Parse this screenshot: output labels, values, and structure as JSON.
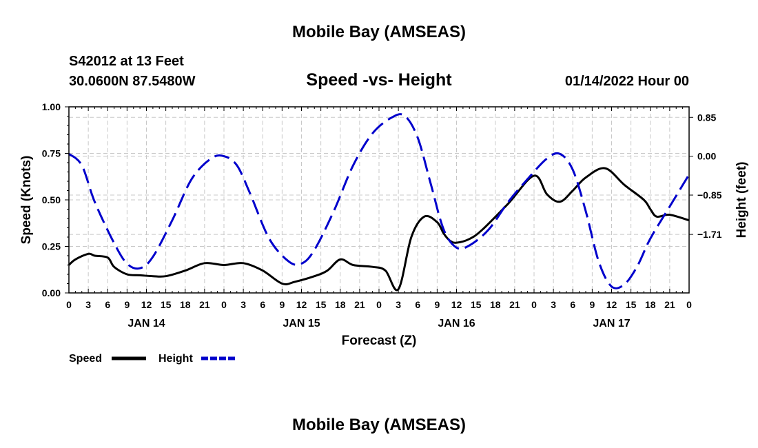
{
  "chart_data": {
    "type": "line",
    "title": "Mobile Bay (AMSEAS)",
    "subtitle": "Speed -vs- Height",
    "station": "S42012 at 13 Feet",
    "location": "30.0600N  87.5480W",
    "run_time": "01/14/2022 Hour 00",
    "footer_title": "Mobile Bay (AMSEAS)",
    "xlabel": "Forecast (Z)",
    "ylabel": "Speed (Knots)",
    "y2label": "Height (feet)",
    "ylim": [
      0,
      1
    ],
    "y2lim": [
      -2.99,
      1.08
    ],
    "xlim": [
      0,
      96
    ],
    "x_tick_labels": [
      "0",
      "3",
      "6",
      "9",
      "12",
      "15",
      "18",
      "21",
      "0",
      "3",
      "6",
      "9",
      "12",
      "15",
      "18",
      "21",
      "0",
      "3",
      "6",
      "9",
      "12",
      "15",
      "18",
      "21",
      "0",
      "3",
      "6",
      "9",
      "12",
      "15",
      "18",
      "21",
      "0"
    ],
    "day_labels": [
      {
        "label": "JAN 14",
        "hour": 12
      },
      {
        "label": "JAN 15",
        "hour": 36
      },
      {
        "label": "JAN 16",
        "hour": 60
      },
      {
        "label": "JAN 17",
        "hour": 84
      }
    ],
    "y_ticks": [
      "0.00",
      "0.25",
      "0.50",
      "0.75",
      "1.00"
    ],
    "y2_ticks": [
      0.85,
      0.0,
      -0.85,
      -1.71
    ],
    "y2_tick_labels": [
      "0.85",
      "0.00",
      "−0.85",
      "−1.71"
    ],
    "series": [
      {
        "name": "Speed",
        "color": "#000000",
        "axis": "left",
        "style": "solid",
        "x": [
          0,
          1,
          3,
          4,
          6,
          7,
          9,
          11,
          13,
          15,
          18,
          21,
          24,
          27,
          30,
          33,
          35,
          38,
          40,
          42,
          44,
          47,
          49,
          51,
          53,
          55,
          57,
          58,
          59,
          60,
          62,
          64,
          68,
          72,
          74,
          76,
          78,
          80,
          83,
          86,
          89,
          90,
          91,
          93,
          96
        ],
        "y": [
          0.15,
          0.18,
          0.21,
          0.2,
          0.19,
          0.14,
          0.1,
          0.095,
          0.09,
          0.09,
          0.12,
          0.16,
          0.15,
          0.16,
          0.12,
          0.05,
          0.06,
          0.09,
          0.12,
          0.18,
          0.15,
          0.14,
          0.12,
          0.02,
          0.3,
          0.41,
          0.38,
          0.32,
          0.28,
          0.27,
          0.29,
          0.34,
          0.48,
          0.63,
          0.53,
          0.49,
          0.55,
          0.62,
          0.67,
          0.58,
          0.5,
          0.45,
          0.41,
          0.42,
          0.39
        ]
      },
      {
        "name": "Height",
        "color": "#0000cc",
        "axis": "right",
        "style": "dashed",
        "x": [
          0,
          2,
          4,
          7,
          9,
          11,
          13,
          16,
          19,
          22,
          24,
          26,
          28,
          31,
          34,
          36,
          38,
          41,
          44,
          47,
          50,
          52,
          54,
          56,
          58,
          60,
          62,
          65,
          68,
          71,
          74,
          76,
          78,
          80,
          82,
          84,
          86,
          88,
          90,
          93,
          96
        ],
        "y": [
          0.05,
          -0.2,
          -1.0,
          -1.9,
          -2.35,
          -2.45,
          -2.2,
          -1.4,
          -0.5,
          -0.05,
          0.0,
          -0.2,
          -0.8,
          -1.8,
          -2.3,
          -2.35,
          -2.05,
          -1.2,
          -0.2,
          0.5,
          0.85,
          0.88,
          0.4,
          -0.6,
          -1.6,
          -2.0,
          -1.95,
          -1.6,
          -1.0,
          -0.5,
          -0.05,
          0.05,
          -0.3,
          -1.2,
          -2.3,
          -2.85,
          -2.8,
          -2.4,
          -1.8,
          -1.1,
          -0.4
        ]
      }
    ]
  }
}
